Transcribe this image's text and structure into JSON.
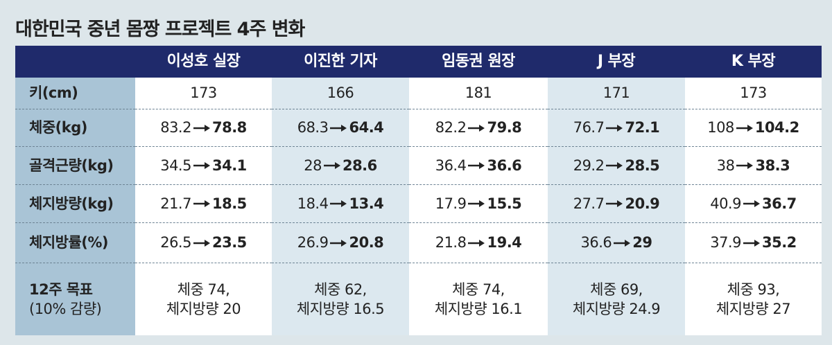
{
  "title": "대한민국 중년 몸짱 프로젝트 4주 변화",
  "table": {
    "columns": [
      "이성호 실장",
      "이진한 기자",
      "임동권 원장",
      "J 부장",
      "K 부장"
    ],
    "rows": [
      {
        "label": "키(cm)",
        "cells": [
          "173",
          "166",
          "181",
          "171",
          "173"
        ]
      },
      {
        "label": "체중(kg)",
        "cells": [
          {
            "before": "83.2",
            "after": "78.8"
          },
          {
            "before": "68.3",
            "after": "64.4"
          },
          {
            "before": "82.2",
            "after": "79.8"
          },
          {
            "before": "76.7",
            "after": "72.1"
          },
          {
            "before": "108",
            "after": "104.2"
          }
        ]
      },
      {
        "label": "골격근량(kg)",
        "cells": [
          {
            "before": "34.5",
            "after": "34.1"
          },
          {
            "before": "28",
            "after": "28.6"
          },
          {
            "before": "36.4",
            "after": "36.6"
          },
          {
            "before": "29.2",
            "after": "28.5"
          },
          {
            "before": "38",
            "after": "38.3"
          }
        ]
      },
      {
        "label": "체지방량(kg)",
        "cells": [
          {
            "before": "21.7",
            "after": "18.5"
          },
          {
            "before": "18.4",
            "after": "13.4"
          },
          {
            "before": "17.9",
            "after": "15.5"
          },
          {
            "before": "27.7",
            "after": "20.9"
          },
          {
            "before": "40.9",
            "after": "36.7"
          }
        ]
      },
      {
        "label": "체지방률(%)",
        "cells": [
          {
            "before": "26.5",
            "after": "23.5"
          },
          {
            "before": "26.9",
            "after": "20.8"
          },
          {
            "before": "21.8",
            "after": "19.4"
          },
          {
            "before": "36.6",
            "after": "29"
          },
          {
            "before": "37.9",
            "after": "35.2"
          }
        ]
      },
      {
        "label": [
          "12주 목표",
          "(10% 감량)"
        ],
        "cells": [
          [
            "체중 74,",
            "체지방량 20"
          ],
          [
            "체중 62,",
            "체지방량 16.5"
          ],
          [
            "체중 74,",
            "체지방량 16.1"
          ],
          [
            "체중 69,",
            "체지방량 24.9"
          ],
          [
            "체중 93,",
            "체지방량 27"
          ]
        ]
      }
    ]
  }
}
